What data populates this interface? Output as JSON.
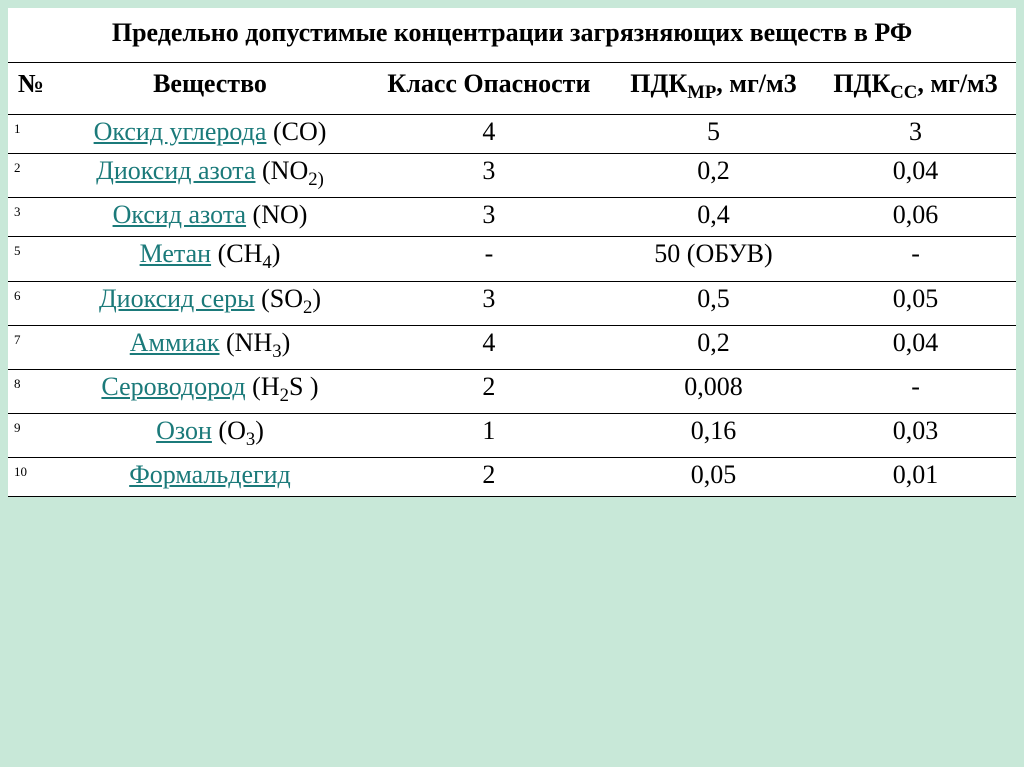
{
  "title": "Предельно допустимые концентрации загрязняющих веществ в РФ",
  "headers": {
    "num": "№",
    "substance": "Вещество",
    "hazard_class": "Класс Опасности",
    "pdk_mr_label": "ПДК",
    "pdk_mr_sub": "МР",
    "pdk_mr_unit": ", мг/м3",
    "pdk_ss_label": "ПДК",
    "pdk_ss_sub": "СС",
    "pdk_ss_unit": ", мг/м3"
  },
  "rows": [
    {
      "num": "1",
      "link": "Оксид углерода",
      "formula_open": " (",
      "formula": "CO",
      "sub": "",
      "formula_close": ")",
      "cls": "4",
      "mr": "5",
      "ss": "3"
    },
    {
      "num": "2",
      "link": "Диоксид азота",
      "formula_open": " (",
      "formula": "NO",
      "sub": "2)",
      "formula_close": "",
      "cls": "3",
      "mr": "0,2",
      "ss": "0,04"
    },
    {
      "num": "3",
      "link": "Оксид азота",
      "formula_open": " (",
      "formula": "NO",
      "sub": "",
      "formula_close": ")",
      "cls": "3",
      "mr": "0,4",
      "ss": "0,06"
    },
    {
      "num": "5",
      "link": "Метан",
      "formula_open": " (",
      "formula": "CH",
      "sub": "4",
      "formula_close": ")",
      "cls": "-",
      "mr": "50 (ОБУВ)",
      "ss": "-"
    },
    {
      "num": "6",
      "link": "Диоксид серы",
      "formula_open": " (",
      "formula": "SO",
      "sub": "2",
      "formula_close": ")",
      "cls": "3",
      "mr": "0,5",
      "ss": "0,05"
    },
    {
      "num": "7",
      "link": "Аммиак",
      "formula_open": " (",
      "formula": "NH",
      "sub": "3",
      "formula_close": ")",
      "cls": "4",
      "mr": "0,2",
      "ss": "0,04"
    },
    {
      "num": "8",
      "link": "Сероводород",
      "formula_open": " (",
      "formula": "H",
      "sub": "2",
      "formula_close": "S )",
      "cls": "2",
      "mr": "0,008",
      "ss": "-"
    },
    {
      "num": "9",
      "link": "Озон",
      "formula_open": " (",
      "formula": "O",
      "sub": "3",
      "formula_close": ")",
      "cls": "1",
      "mr": "0,16",
      "ss": "0,03"
    },
    {
      "num": "10",
      "link": "Формальдегид",
      "formula_open": "",
      "formula": "",
      "sub": "",
      "formula_close": "",
      "cls": "2",
      "mr": "0,05",
      "ss": "0,01"
    }
  ]
}
